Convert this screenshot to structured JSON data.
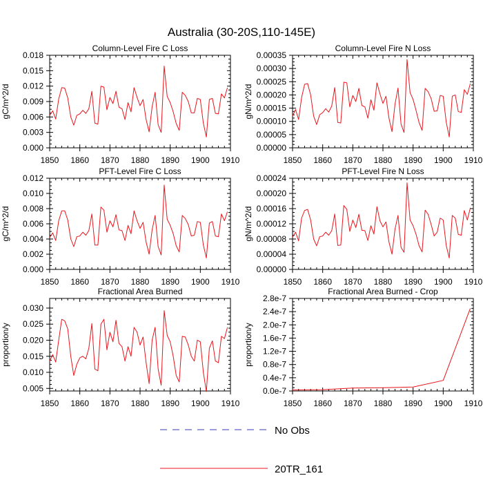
{
  "figure": {
    "title": "Australia (30-20S,110-145E)",
    "series_color": "#e8141b",
    "obs_color": "#3a3ab4",
    "legend": [
      {
        "label": "No Obs",
        "style": "dashed"
      },
      {
        "label": "20TR_161",
        "style": "solid"
      }
    ]
  },
  "chart_data": [
    {
      "type": "line",
      "title": "Column-Level Fire C Loss",
      "xlabel": "",
      "ylabel": "gC/m^2/d",
      "xlim": [
        1850,
        1910
      ],
      "ylim": [
        0,
        0.018
      ],
      "xticks": [
        1850,
        1860,
        1870,
        1880,
        1890,
        1900,
        1910
      ],
      "xtick_labels": [
        "1850",
        "1860",
        "1870",
        "1880",
        "1890",
        "1900",
        "1910"
      ],
      "yticks": [
        0,
        0.003,
        0.006,
        0.009,
        0.012,
        0.015,
        0.018
      ],
      "ytick_labels": [
        "0.000",
        "0.003",
        "0.006",
        "0.009",
        "0.012",
        "0.015",
        "0.018"
      ],
      "series": [
        {
          "name": "20TR_161",
          "x_start": 1850,
          "values": [
            0.0063,
            0.0072,
            0.0056,
            0.0095,
            0.0117,
            0.0116,
            0.0097,
            0.006,
            0.0044,
            0.0063,
            0.0066,
            0.0073,
            0.0067,
            0.0076,
            0.011,
            0.0048,
            0.0046,
            0.012,
            0.0118,
            0.0074,
            0.0098,
            0.0086,
            0.011,
            0.0079,
            0.0076,
            0.0055,
            0.0088,
            0.007,
            0.0117,
            0.0098,
            0.0082,
            0.0094,
            0.0055,
            0.0031,
            0.008,
            0.0108,
            0.0045,
            0.003,
            0.0159,
            0.01,
            0.0088,
            0.007,
            0.0047,
            0.0034,
            0.0108,
            0.0102,
            0.009,
            0.0068,
            0.0068,
            0.0096,
            0.0094,
            0.0048,
            0.0021,
            0.0094,
            0.0096,
            0.0067,
            0.0066,
            0.0105,
            0.0097,
            0.0117
          ]
        }
      ]
    },
    {
      "type": "line",
      "title": "Column-Level Fire N Loss",
      "xlabel": "",
      "ylabel": "gN/m^2/d",
      "xlim": [
        1850,
        1910
      ],
      "ylim": [
        0,
        0.00035
      ],
      "xticks": [
        1850,
        1860,
        1870,
        1880,
        1890,
        1900,
        1910
      ],
      "xtick_labels": [
        "1850",
        "1860",
        "1870",
        "1880",
        "1890",
        "1900",
        "1910"
      ],
      "yticks": [
        0,
        5e-05,
        0.0001,
        0.00015,
        0.0002,
        0.00025,
        0.0003,
        0.00035
      ],
      "ytick_labels": [
        "0.00000",
        "0.00005",
        "0.00010",
        "0.00015",
        "0.00020",
        "0.00025",
        "0.00030",
        "0.00035"
      ],
      "series": [
        {
          "name": "20TR_161",
          "x_start": 1850,
          "values": [
            0.00012,
            0.000145,
            0.000107,
            0.00019,
            0.00024,
            0.000243,
            0.0002,
            0.00012,
            8.8e-05,
            0.000125,
            0.000133,
            0.000148,
            0.000135,
            0.000158,
            0.000228,
            9.6e-05,
            9.4e-05,
            0.000248,
            0.000246,
            0.000155,
            0.000198,
            0.000175,
            0.000225,
            0.00016,
            0.000155,
            0.000112,
            0.000182,
            0.000142,
            0.000246,
            0.000204,
            0.000168,
            0.000195,
            0.000112,
            6.1e-05,
            0.000165,
            0.000226,
            9e-05,
            5.8e-05,
            0.000334,
            0.000209,
            0.000183,
            0.000141,
            9.5e-05,
            6.6e-05,
            0.000225,
            0.000212,
            0.000186,
            0.000138,
            0.00014,
            0.000198,
            0.000195,
            9.7e-05,
            4.1e-05,
            0.000195,
            0.0002,
            0.000137,
            0.000134,
            0.00022,
            0.000202,
            0.000243
          ]
        }
      ]
    },
    {
      "type": "line",
      "title": "PFT-Level Fire C Loss",
      "xlabel": "",
      "ylabel": "gC/m^2/d",
      "xlim": [
        1850,
        1910
      ],
      "ylim": [
        0,
        0.012
      ],
      "xticks": [
        1850,
        1860,
        1870,
        1880,
        1890,
        1900,
        1910
      ],
      "xtick_labels": [
        "1850",
        "1860",
        "1870",
        "1880",
        "1890",
        "1900",
        "1910"
      ],
      "yticks": [
        0,
        0.002,
        0.004,
        0.006,
        0.008,
        0.01,
        0.012
      ],
      "ytick_labels": [
        "0.000",
        "0.002",
        "0.004",
        "0.006",
        "0.008",
        "0.010",
        "0.012"
      ],
      "series": [
        {
          "name": "20TR_161",
          "x_start": 1850,
          "values": [
            0.0042,
            0.0048,
            0.0038,
            0.0064,
            0.0077,
            0.0077,
            0.0065,
            0.004,
            0.003,
            0.0043,
            0.0044,
            0.0049,
            0.0045,
            0.0051,
            0.0073,
            0.0032,
            0.0032,
            0.0082,
            0.0078,
            0.0049,
            0.0064,
            0.0056,
            0.0072,
            0.0052,
            0.0051,
            0.0038,
            0.0058,
            0.0047,
            0.0077,
            0.0064,
            0.0054,
            0.0062,
            0.0036,
            0.002,
            0.0052,
            0.0071,
            0.003,
            0.0019,
            0.0111,
            0.0066,
            0.0058,
            0.0047,
            0.0031,
            0.0023,
            0.0071,
            0.0067,
            0.0059,
            0.0044,
            0.0045,
            0.0063,
            0.0062,
            0.0032,
            0.0015,
            0.0061,
            0.0063,
            0.0044,
            0.0043,
            0.0073,
            0.0064,
            0.0076
          ]
        }
      ]
    },
    {
      "type": "line",
      "title": "PFT-Level Fire N Loss",
      "xlabel": "",
      "ylabel": "gN/m^2/d",
      "xlim": [
        1850,
        1910
      ],
      "ylim": [
        0,
        0.00024
      ],
      "xticks": [
        1850,
        1860,
        1870,
        1880,
        1890,
        1900,
        1910
      ],
      "xtick_labels": [
        "1850",
        "1860",
        "1870",
        "1880",
        "1890",
        "1900",
        "1910"
      ],
      "yticks": [
        0,
        4e-05,
        8e-05,
        0.00012,
        0.00016,
        0.0002,
        0.00024
      ],
      "ytick_labels": [
        "0.00000",
        "0.00004",
        "0.00008",
        "0.00012",
        "0.00016",
        "0.00020",
        "0.00024"
      ],
      "series": [
        {
          "name": "20TR_161",
          "x_start": 1850,
          "values": [
            8.5e-05,
            9.8e-05,
            7.5e-05,
            0.000135,
            0.000155,
            0.000158,
            0.00013,
            8e-05,
            6.2e-05,
            8.6e-05,
            8.8e-05,
            9.8e-05,
            9e-05,
            0.000102,
            0.000146,
            6.3e-05,
            6.4e-05,
            0.000168,
            0.000158,
            0.0001,
            0.00013,
            0.00011,
            0.000145,
            0.000103,
            0.000102,
            7.6e-05,
            0.000115,
            9.3e-05,
            0.000165,
            0.000128,
            0.000112,
            0.000125,
            7.2e-05,
            4e-05,
            0.000106,
            0.000142,
            5.8e-05,
            4.5e-05,
            0.000228,
            0.00013,
            0.000115,
            9.2e-05,
            6.2e-05,
            4.6e-05,
            0.000156,
            0.000145,
            0.000118,
            8.8e-05,
            9.8e-05,
            0.000135,
            0.00013,
            6.3e-05,
            3e-05,
            0.000142,
            0.000135,
            9.2e-05,
            9e-05,
            0.000155,
            0.00013,
            0.000162
          ]
        }
      ]
    },
    {
      "type": "line",
      "title": "Fractional Area Burned",
      "xlabel": "",
      "ylabel": "proportion/y",
      "xlim": [
        1850,
        1910
      ],
      "ylim": [
        0.0042,
        0.033
      ],
      "xticks": [
        1850,
        1860,
        1870,
        1880,
        1890,
        1900,
        1910
      ],
      "xtick_labels": [
        "1850",
        "1860",
        "1870",
        "1880",
        "1890",
        "1900",
        "1910"
      ],
      "yticks": [
        0.005,
        0.01,
        0.015,
        0.02,
        0.025,
        0.03
      ],
      "ytick_labels": [
        "0.005",
        "0.010",
        "0.015",
        "0.020",
        "0.025",
        "0.030"
      ],
      "series": [
        {
          "name": "20TR_161",
          "x_start": 1850,
          "values": [
            0.0135,
            0.0155,
            0.0132,
            0.02,
            0.0265,
            0.026,
            0.0235,
            0.015,
            0.009,
            0.0125,
            0.0145,
            0.015,
            0.0142,
            0.0175,
            0.0252,
            0.011,
            0.0105,
            0.025,
            0.0265,
            0.017,
            0.0225,
            0.0195,
            0.0262,
            0.019,
            0.018,
            0.0135,
            0.018,
            0.015,
            0.024,
            0.0225,
            0.0185,
            0.021,
            0.013,
            0.0065,
            0.02,
            0.024,
            0.011,
            0.006,
            0.0292,
            0.0215,
            0.0195,
            0.015,
            0.009,
            0.007,
            0.0212,
            0.021,
            0.0185,
            0.015,
            0.0135,
            0.02,
            0.0195,
            0.01,
            0.004,
            0.0175,
            0.0198,
            0.0135,
            0.013,
            0.0212,
            0.0205,
            0.024
          ]
        }
      ]
    },
    {
      "type": "line",
      "title": "Fractional Area Burned - Crop",
      "xlabel": "",
      "ylabel": "proportion/y",
      "xlim": [
        1850,
        1910
      ],
      "ylim": [
        0,
        2.8e-07
      ],
      "xticks": [
        1850,
        1860,
        1870,
        1880,
        1890,
        1900,
        1910
      ],
      "xtick_labels": [
        "1850",
        "1860",
        "1870",
        "1880",
        "1890",
        "1900",
        "1910"
      ],
      "yticks": [
        0,
        4e-08,
        8e-08,
        1.2e-07,
        1.6e-07,
        2e-07,
        2.4e-07,
        2.8e-07
      ],
      "ytick_labels": [
        "0.0e-7",
        "0.4e-7",
        "0.8e-7",
        "1.2e-7",
        "1.6e-7",
        "2.0e-7",
        "2.4e-7",
        "2.8e-7"
      ],
      "series": [
        {
          "name": "20TR_161",
          "x": [
            1850,
            1860,
            1870,
            1880,
            1890,
            1900,
            1909
          ],
          "values": [
            3e-09,
            4e-09,
            9e-09,
            1e-08,
            1.2e-08,
            3.2e-08,
            2.5e-07
          ]
        }
      ]
    }
  ]
}
